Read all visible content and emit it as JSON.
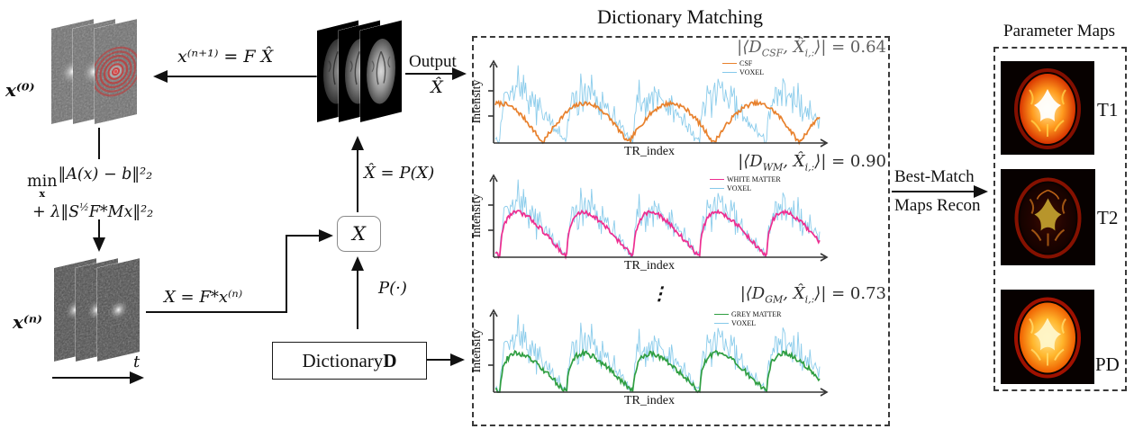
{
  "left": {
    "x0_label": "x⁽⁰⁾",
    "xn_label": "x⁽ⁿ⁾",
    "t_label": "t",
    "iterate_arrow_label": "x⁽ⁿ⁺¹⁾ = F X̂",
    "transform_label": "X = F*x⁽ⁿ⁾",
    "equation": {
      "min": "min",
      "min_sub": "x",
      "line1_body": "‖A(x) − b‖²₂",
      "line2_pre": "+ λ‖S",
      "line2_sup": "½",
      "line2_post": "F*Mx‖²₂"
    }
  },
  "middle": {
    "output_label": "Output",
    "output_symbol": "X̂",
    "projection_label": "X̂ = P(X)",
    "projection_operator_label": "P(·)",
    "x_box_label": "X",
    "dictionary_box_text": "Dictionary ",
    "dictionary_box_d": "D"
  },
  "matching": {
    "title": "Dictionary Matching",
    "ellipsis": "⋮",
    "plots": [
      {
        "match": {
          "pre": "|⟨D",
          "tissue": "CSF",
          "mid": ", X̂",
          "idx": "i,:",
          "post": "⟩| = ",
          "value": "0.64"
        },
        "match_color": "#5f5f5f",
        "ylabel": "Intensity",
        "xlabel": "TR_index",
        "legend": [
          {
            "label": "CSF",
            "color": "#e8812d"
          },
          {
            "label": "VOXEL",
            "color": "#85c9ea"
          }
        ]
      },
      {
        "match": {
          "pre": "|⟨D",
          "tissue": "WM",
          "mid": ", X̂",
          "idx": "i,:",
          "post": "⟩| = ",
          "value": "0.90"
        },
        "match_color": "#2d2d2d",
        "ylabel": "Intensity",
        "xlabel": "TR_index",
        "legend": [
          {
            "label": "WHITE MATTER",
            "color": "#ee2d90"
          },
          {
            "label": "VOXEL",
            "color": "#85c9ea"
          }
        ]
      },
      {
        "match": {
          "pre": "|⟨D",
          "tissue": "GM",
          "mid": ", X̂",
          "idx": "i,:",
          "post": "⟩| = ",
          "value": "0.73"
        },
        "match_color": "#2d2d2d",
        "ylabel": "Intensity",
        "xlabel": "TR_index",
        "legend": [
          {
            "label": "GREY MATTER",
            "color": "#2f9e41"
          },
          {
            "label": "VOXEL",
            "color": "#85c9ea"
          }
        ]
      }
    ]
  },
  "best_match": {
    "line1": "Best-Match",
    "line2": "Maps Recon"
  },
  "parameter_maps": {
    "title": "Parameter Maps",
    "maps": [
      {
        "label": "T1",
        "palette": {
          "rim": "#8a1000",
          "c0": "#fff1a8",
          "c1": "#ff9b1e",
          "c2": "#d83400",
          "vent": "#ffffff",
          "streak": "#ffd24a",
          "dark": false
        }
      },
      {
        "label": "T2",
        "palette": {
          "rim": "#8c1200",
          "c0": "#5a1000",
          "c1": "#300602",
          "c2": "#1c0301",
          "vent": "#ffd23d",
          "streak": "#ff8b1f",
          "dark": true
        }
      },
      {
        "label": "PD",
        "palette": {
          "rim": "#a81200",
          "c0": "#ffec9e",
          "c1": "#ffb52b",
          "c2": "#ef5f00",
          "vent": "#fff6c8",
          "streak": "#ffdf70",
          "dark": false
        }
      }
    ]
  },
  "colors": {
    "arrow": "#111111",
    "axis": "#333333",
    "voxel": "#85c9ea",
    "kspace_spiral": "#c83232"
  },
  "chart_data": [
    {
      "type": "line",
      "panel": "Dictionary Matching",
      "annotation": "|⟨D_CSF, X̂_i,:⟩| = 0.64",
      "match_value": 0.64,
      "xlabel": "TR_index",
      "ylabel": "Intensity",
      "x_ticks": "unlabeled",
      "y_ticks": "unlabeled (2 ticks)",
      "grid": false,
      "legend_position": "upper right",
      "series": [
        {
          "name": "CSF",
          "color": "#e8812d",
          "description": "smooth CSF dictionary fingerprint: ~5 symmetric sine-like arcs touching zero, visibly mismatched with voxel trace"
        },
        {
          "name": "VOXEL",
          "color": "#85c9ea",
          "description": "noisy measured voxel fingerprint: ~5 lobes with fast rise and slow decay, heavy high-frequency noise"
        }
      ]
    },
    {
      "type": "line",
      "panel": "Dictionary Matching",
      "annotation": "|⟨D_WM, X̂_i,:⟩| = 0.90",
      "match_value": 0.9,
      "xlabel": "TR_index",
      "ylabel": "Intensity",
      "x_ticks": "unlabeled",
      "y_ticks": "unlabeled (2 ticks)",
      "grid": false,
      "legend_position": "upper right",
      "series": [
        {
          "name": "WHITE MATTER",
          "color": "#ee2d90",
          "description": "white-matter dictionary fingerprint closely overlapping the voxel lobes (best match)"
        },
        {
          "name": "VOXEL",
          "color": "#85c9ea",
          "description": "same noisy voxel fingerprint as other subplots"
        }
      ]
    },
    {
      "type": "line",
      "panel": "Dictionary Matching",
      "annotation": "|⟨D_GM, X̂_i,:⟩| = 0.73",
      "match_value": 0.73,
      "xlabel": "TR_index",
      "ylabel": "Intensity",
      "x_ticks": "unlabeled",
      "y_ticks": "unlabeled (2 ticks)",
      "grid": false,
      "legend_position": "upper right",
      "series": [
        {
          "name": "GREY MATTER",
          "color": "#2f9e41",
          "description": "grey-matter dictionary fingerprint following voxel lobes at lower amplitude"
        },
        {
          "name": "VOXEL",
          "color": "#85c9ea",
          "description": "same noisy voxel fingerprint as other subplots"
        }
      ]
    }
  ]
}
